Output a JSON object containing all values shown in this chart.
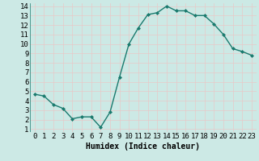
{
  "x": [
    0,
    1,
    2,
    3,
    4,
    5,
    6,
    7,
    8,
    9,
    10,
    11,
    12,
    13,
    14,
    15,
    16,
    17,
    18,
    19,
    20,
    21,
    22,
    23
  ],
  "y": [
    4.7,
    4.5,
    3.6,
    3.2,
    2.1,
    2.3,
    2.3,
    1.2,
    2.8,
    6.5,
    10.0,
    11.7,
    13.1,
    13.3,
    14.0,
    13.5,
    13.5,
    13.0,
    13.0,
    12.1,
    11.0,
    9.5,
    9.2,
    8.8
  ],
  "line_color": "#1a7a6e",
  "marker_style": "D",
  "marker_size": 2,
  "bg_color": "#cce9e5",
  "grid_color": "#e8c8c8",
  "xlabel": "Humidex (Indice chaleur)",
  "ylim_min": 1,
  "ylim_max": 14,
  "xlim_min": 0,
  "xlim_max": 23,
  "yticks": [
    1,
    2,
    3,
    4,
    5,
    6,
    7,
    8,
    9,
    10,
    11,
    12,
    13,
    14
  ],
  "xticks": [
    0,
    1,
    2,
    3,
    4,
    5,
    6,
    7,
    8,
    9,
    10,
    11,
    12,
    13,
    14,
    15,
    16,
    17,
    18,
    19,
    20,
    21,
    22,
    23
  ],
  "xlabel_fontsize": 7,
  "tick_fontsize": 6.5,
  "font_family": "monospace"
}
